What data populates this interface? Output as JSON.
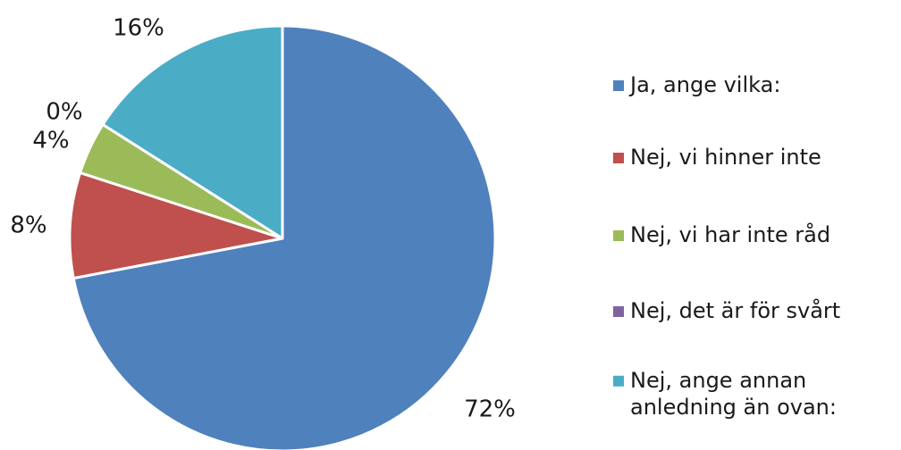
{
  "chart_data": {
    "type": "pie",
    "title": "",
    "legend_position": "right",
    "slices": [
      {
        "label": "Ja, ange vilka:",
        "value": 72,
        "value_label": "72%",
        "color": "#4F81BD"
      },
      {
        "label": "Nej, vi hinner inte",
        "value": 8,
        "value_label": "8%",
        "color": "#C0504D"
      },
      {
        "label": "Nej, vi har inte råd",
        "value": 4,
        "value_label": "4%",
        "color": "#9BBB59"
      },
      {
        "label": "Nej, det är för svårt",
        "value": 0,
        "value_label": "0%",
        "color": "#8064A2"
      },
      {
        "label": "Nej, ange annan anledning än ovan:",
        "value": 16,
        "value_label": "16%",
        "color": "#4BACC6"
      }
    ]
  }
}
